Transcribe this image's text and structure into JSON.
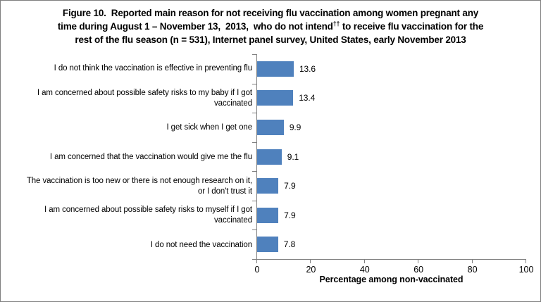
{
  "figure": {
    "title": {
      "line1": "Figure 10.  Reported main reason for not receiving flu vaccination among women pregnant any",
      "line2_pre": "time during August 1 – November 13,  2013,  who do not intend",
      "line2_sup": "††",
      "line2_post": " to receive flu vaccination for the",
      "line3": "rest of the flu season (n = 531), Internet panel survey, United States, early November 2013"
    }
  },
  "colors": {
    "bar": "#4F81BD",
    "axis": "#808080",
    "border": "#7F7F7F",
    "text": "#000000",
    "background": "#FFFFFF"
  },
  "chart_data": {
    "type": "bar",
    "orientation": "horizontal",
    "title": "Figure 10. Reported main reason for not receiving flu vaccination among women pregnant any time during August 1 – November 13, 2013, who do not intend†† to receive flu vaccination for the rest of the flu season (n = 531), Internet panel survey, United States, early November 2013",
    "categories": [
      "I do not think the vaccination is effective in preventing flu",
      "I am concerned about possible safety risks to my baby if I got vaccinated",
      "I get sick when I get one",
      "I am concerned that the vaccination would give me the flu",
      "The vaccination is too new or there is not enough research on it, or I don't trust it",
      "I am concerned about possible safety risks to myself if I got vaccinated",
      "I do not need the vaccination"
    ],
    "category_lines": [
      [
        "I do not think the vaccination is effective in preventing flu"
      ],
      [
        "I am concerned about possible safety risks to my baby if I got",
        "vaccinated"
      ],
      [
        "I get sick when I get one"
      ],
      [
        "I am concerned that the vaccination would give me the flu"
      ],
      [
        "The vaccination is too new or there is not enough research on it,",
        "or I don't trust it"
      ],
      [
        "I am concerned about possible safety risks to myself if I got",
        "vaccinated"
      ],
      [
        "I do not need the vaccination"
      ]
    ],
    "values": [
      13.6,
      13.4,
      9.9,
      9.1,
      7.9,
      7.9,
      7.8
    ],
    "value_labels": [
      "13.6",
      "13.4",
      "9.9",
      "9.1",
      "7.9",
      "7.9",
      "7.8"
    ],
    "xlabel": "Percentage among non-vaccinated",
    "xlim": [
      0,
      100
    ],
    "xticks": [
      0,
      20,
      40,
      60,
      80,
      100
    ],
    "xtick_labels": [
      "0",
      "20",
      "40",
      "60",
      "80",
      "100"
    ],
    "grid": false,
    "legend": false
  }
}
